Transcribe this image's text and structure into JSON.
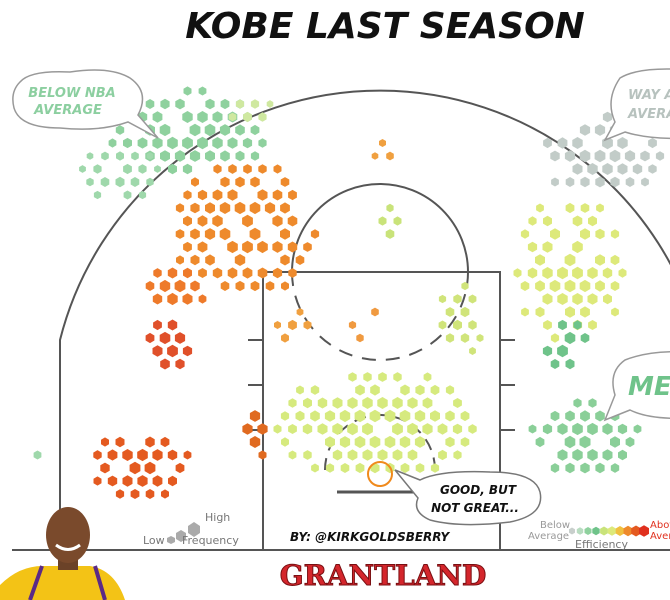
{
  "header": {
    "title": "Kobe Last Season"
  },
  "callouts": {
    "below": [
      "Below NBA",
      "Average"
    ],
    "way_above": [
      "Way Above",
      "Average"
    ],
    "meh": "Meh",
    "good": [
      "Good, but",
      "not Great..."
    ]
  },
  "legend": {
    "frequency": {
      "low": "Low",
      "high": "High",
      "label": "Frequency"
    },
    "efficiency": {
      "below": [
        "Below",
        "Average"
      ],
      "above": [
        "Above",
        "Average"
      ],
      "label": "Efficiency"
    }
  },
  "credit": "By: @KirkGoldsberry",
  "brand": "GRANTLAND"
}
